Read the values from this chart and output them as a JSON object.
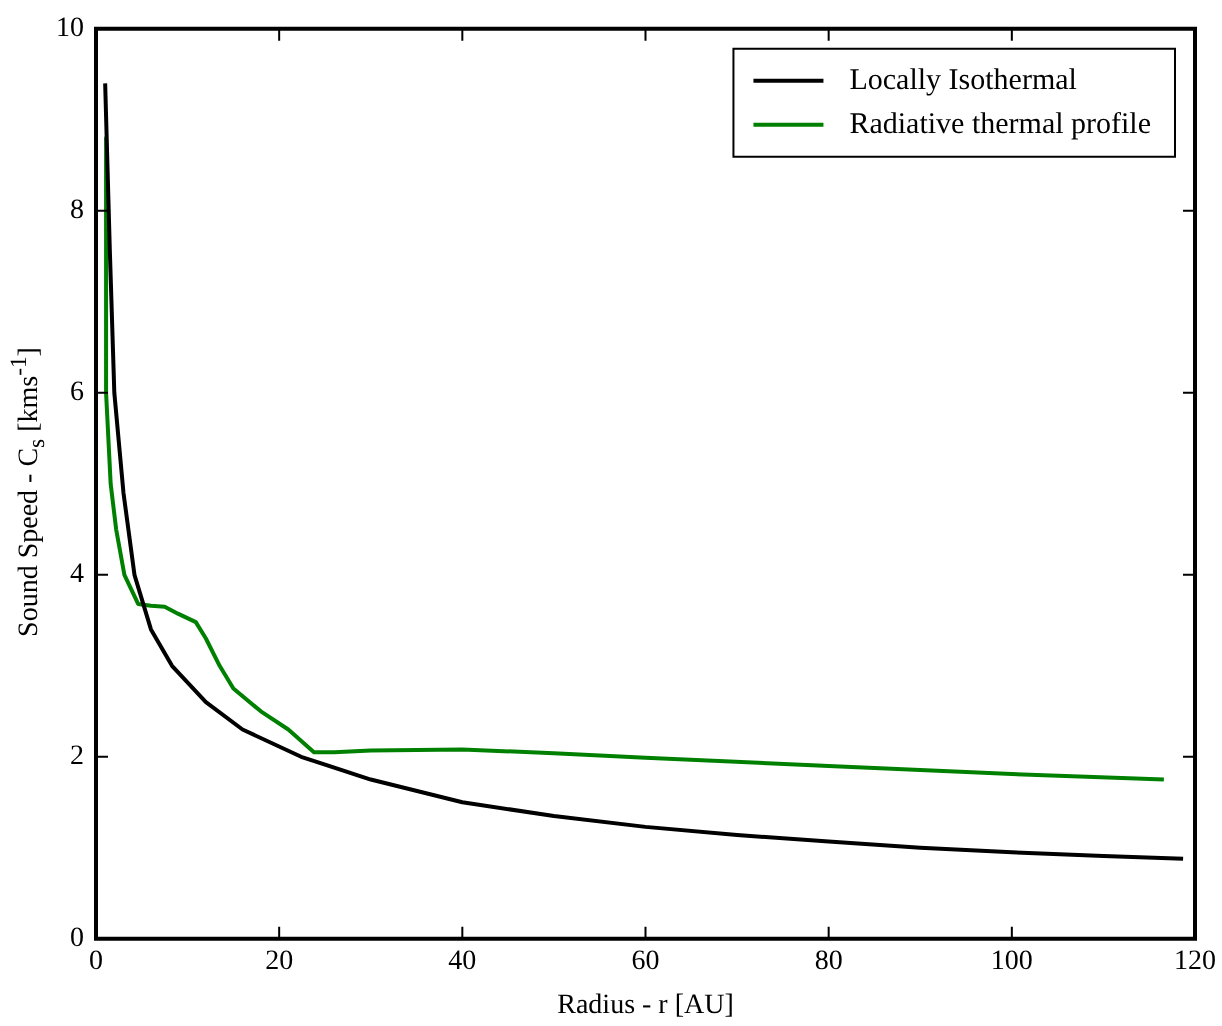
{
  "chart_data": {
    "type": "line",
    "xlabel": "Radius - r [AU]",
    "ylabel": "Sound Speed - C$_{s}$ [kms$^{-1}$]",
    "xlim": [
      0,
      120
    ],
    "xticks": [
      0,
      20,
      40,
      60,
      80,
      100,
      120
    ],
    "ylim": [
      0,
      10
    ],
    "yticks": [
      0,
      2,
      4,
      6,
      8,
      10
    ],
    "grid": false,
    "legend": "top right",
    "marker": "none",
    "line_style": "solid",
    "series": [
      {
        "name": "Locally Isothermal",
        "color": "#000000",
        "x": [
          1,
          1.5,
          2,
          3,
          4.2,
          6,
          8.3,
          12,
          16,
          22.4,
          30,
          40,
          50,
          60,
          70,
          80,
          90,
          100,
          110,
          118.7
        ],
        "values": [
          9.4,
          7.6,
          6.0,
          4.9,
          4.0,
          3.4,
          3.0,
          2.6,
          2.3,
          2.0,
          1.75,
          1.5,
          1.35,
          1.23,
          1.14,
          1.07,
          1.0,
          0.95,
          0.91,
          0.88
        ]
      },
      {
        "name": "Radiative thermal profile",
        "color": "#008000",
        "x": [
          1.1,
          1.1,
          1.6,
          2.2,
          3.1,
          4.6,
          6,
          7.5,
          9,
          10.9,
          12,
          13.5,
          15,
          18,
          21,
          23.8,
          26,
          30,
          40,
          50,
          60,
          80,
          100,
          116.6
        ],
        "values": [
          8.8,
          6.0,
          5.0,
          4.5,
          4.0,
          3.68,
          3.66,
          3.65,
          3.57,
          3.48,
          3.3,
          3.0,
          2.75,
          2.5,
          2.3,
          2.05,
          2.05,
          2.07,
          2.08,
          2.04,
          1.99,
          1.9,
          1.81,
          1.75
        ]
      }
    ]
  }
}
